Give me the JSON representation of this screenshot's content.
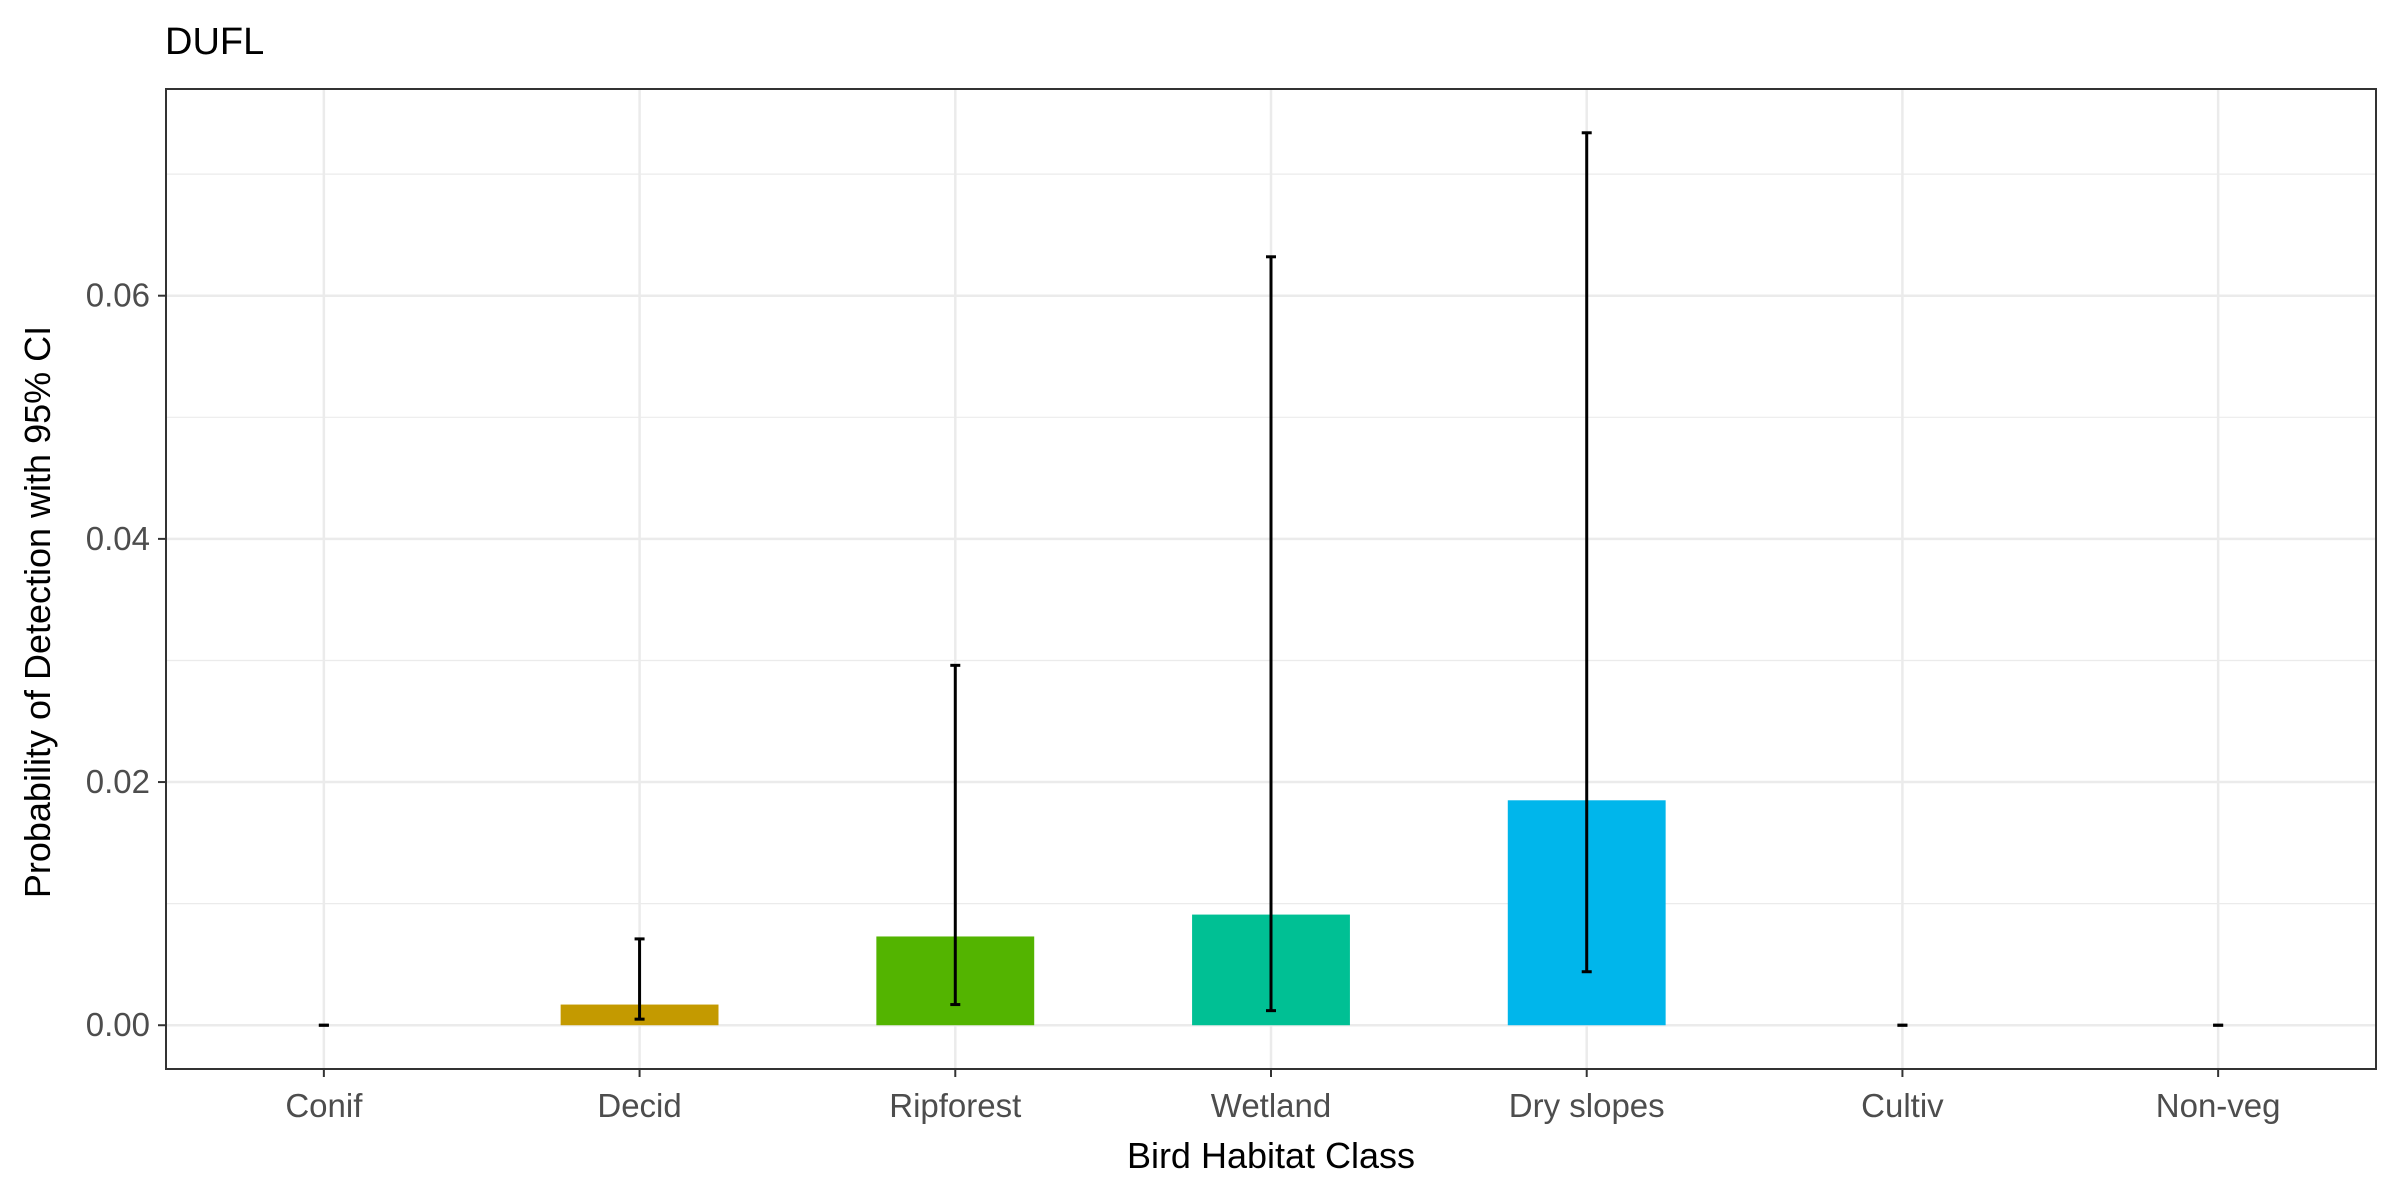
{
  "chart_data": {
    "type": "bar",
    "title": "DUFL",
    "xlabel": "Bird Habitat Class",
    "ylabel": "Probability of Detection with 95% CI",
    "categories": [
      "Conif",
      "Decid",
      "Ripforest",
      "Wetland",
      "Dry slopes",
      "Cultiv",
      "Non-veg"
    ],
    "values": [
      0.0,
      0.0017,
      0.0073,
      0.0091,
      0.0185,
      0.0,
      0.0
    ],
    "ci_lower": [
      0.0,
      0.0005,
      0.0017,
      0.0012,
      0.0044,
      0.0,
      0.0
    ],
    "ci_upper": [
      0.0,
      0.0071,
      0.0296,
      0.0632,
      0.0734,
      0.0,
      0.0
    ],
    "bar_colors": [
      "#f8766d",
      "#c49a00",
      "#53b400",
      "#00c094",
      "#00b6eb",
      "#a58aff",
      "#fb61d7"
    ],
    "ylim": [
      -0.0036,
      0.077
    ],
    "yticks": [
      0.0,
      0.02,
      0.04,
      0.06
    ],
    "ytick_labels": [
      "0.00",
      "0.02",
      "0.04",
      "0.06"
    ],
    "grid": true,
    "legend": "none"
  }
}
